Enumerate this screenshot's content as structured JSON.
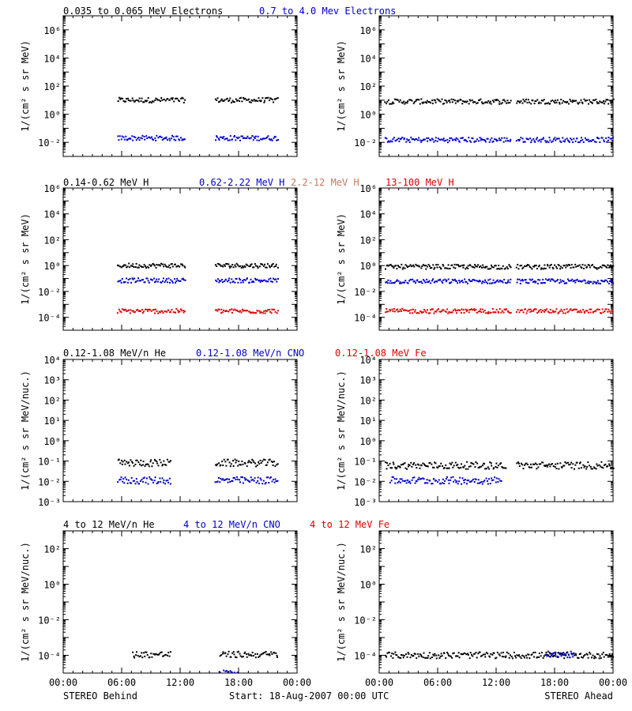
{
  "colors": {
    "black": "#000000",
    "blue": "#0000cc",
    "brown": "#c87860",
    "red": "#e00000"
  },
  "rows": [
    {
      "id": "electrons",
      "legend": [
        {
          "text": "0.035 to 0.065 MeV Electrons",
          "color": "#000000"
        },
        {
          "text": "0.7 to 4.0 Mev Electrons",
          "color": "#0000cc"
        }
      ],
      "ylabel": "1/(cm² s sr MeV)"
    },
    {
      "id": "protons",
      "legend": [
        {
          "text": "0.14-0.62 MeV H",
          "color": "#000000"
        },
        {
          "text": "0.62-2.22 MeV H",
          "color": "#0000cc"
        },
        {
          "text": "2.2-12 MeV H",
          "color": "#c87860"
        },
        {
          "text": "13-100 MeV H",
          "color": "#e00000"
        }
      ],
      "ylabel": "1/(cm² s sr MeV)"
    },
    {
      "id": "heavy_low",
      "legend": [
        {
          "text": "0.12-1.08 MeV/n He",
          "color": "#000000"
        },
        {
          "text": "0.12-1.08 MeV/n CNO",
          "color": "#0000cc"
        },
        {
          "text": "0.12-1.08 MeV Fe",
          "color": "#e00000"
        }
      ],
      "ylabel": "1/(cm² s sr MeV/nuc.)"
    },
    {
      "id": "heavy_high",
      "legend": [
        {
          "text": "4 to 12 MeV/n He",
          "color": "#000000"
        },
        {
          "text": "4 to 12 MeV/n CNO",
          "color": "#0000cc"
        },
        {
          "text": "4 to 12 MeV Fe",
          "color": "#e00000"
        }
      ],
      "ylabel": "1/(cm² s sr MeV/nuc.)"
    }
  ],
  "footer": {
    "left": "STEREO Behind",
    "center": "Start: 18-Aug-2007 00:00 UTC",
    "right": "STEREO Ahead"
  },
  "chart_data": [
    {
      "type": "scatter",
      "row": 0,
      "spacecraft": "Behind",
      "ylog": true,
      "xlim": [
        0,
        24
      ],
      "ylim_exp": [
        -3,
        7
      ],
      "yticks": [
        {
          "exp": -2,
          "label": "10⁻²"
        },
        {
          "exp": 0,
          "label": "10⁰"
        },
        {
          "exp": 2,
          "label": "10²"
        },
        {
          "exp": 4,
          "label": "10⁴"
        },
        {
          "exp": 6,
          "label": "10⁶"
        }
      ],
      "xticks": [
        "00:00",
        "06:00",
        "12:00",
        "18:00",
        "00:00"
      ],
      "series": [
        {
          "color": "#000000",
          "y": 10.0,
          "segments": [
            [
              5.5,
              12.5
            ],
            [
              15.5,
              22.0
            ]
          ]
        },
        {
          "color": "#0000cc",
          "y": 0.02,
          "segments": [
            [
              5.5,
              12.5
            ],
            [
              15.5,
              22.0
            ]
          ]
        }
      ]
    },
    {
      "type": "scatter",
      "row": 0,
      "spacecraft": "Ahead",
      "ylog": true,
      "xlim": [
        0,
        24
      ],
      "ylim_exp": [
        -3,
        7
      ],
      "yticks": [
        {
          "exp": -2,
          "label": "10⁻²"
        },
        {
          "exp": 0,
          "label": "10⁰"
        },
        {
          "exp": 2,
          "label": "10²"
        },
        {
          "exp": 4,
          "label": "10⁴"
        },
        {
          "exp": 6,
          "label": "10⁶"
        }
      ],
      "xticks": [
        "00:00",
        "06:00",
        "12:00",
        "18:00",
        "00:00"
      ],
      "series": [
        {
          "color": "#000000",
          "y": 8.0,
          "segments": [
            [
              0.5,
              13.5
            ],
            [
              14.0,
              24.0
            ]
          ]
        },
        {
          "color": "#0000cc",
          "y": 0.015,
          "segments": [
            [
              0.5,
              13.5
            ],
            [
              14.0,
              24.0
            ]
          ]
        }
      ]
    },
    {
      "type": "scatter",
      "row": 1,
      "spacecraft": "Behind",
      "ylog": true,
      "xlim": [
        0,
        24
      ],
      "ylim_exp": [
        -5,
        6
      ],
      "yticks": [
        {
          "exp": -4,
          "label": "10⁻⁴"
        },
        {
          "exp": -2,
          "label": "10⁻²"
        },
        {
          "exp": 0,
          "label": "10⁰"
        },
        {
          "exp": 2,
          "label": "10²"
        },
        {
          "exp": 4,
          "label": "10⁴"
        },
        {
          "exp": 6,
          "label": "10⁶"
        }
      ],
      "xticks": [
        "00:00",
        "06:00",
        "12:00",
        "18:00",
        "00:00"
      ],
      "series": [
        {
          "color": "#000000",
          "y": 1.0,
          "segments": [
            [
              5.5,
              12.5
            ],
            [
              15.5,
              22.0
            ]
          ]
        },
        {
          "color": "#0000cc",
          "y": 0.07,
          "segments": [
            [
              5.5,
              12.5
            ],
            [
              15.5,
              22.0
            ]
          ]
        },
        {
          "color": "#e00000",
          "y": 0.0003,
          "segments": [
            [
              5.5,
              12.5
            ],
            [
              15.5,
              22.0
            ]
          ]
        }
      ]
    },
    {
      "type": "scatter",
      "row": 1,
      "spacecraft": "Ahead",
      "ylog": true,
      "xlim": [
        0,
        24
      ],
      "ylim_exp": [
        -5,
        6
      ],
      "yticks": [
        {
          "exp": -4,
          "label": "10⁻⁴"
        },
        {
          "exp": -2,
          "label": "10⁻²"
        },
        {
          "exp": 0,
          "label": "10⁰"
        },
        {
          "exp": 2,
          "label": "10²"
        },
        {
          "exp": 4,
          "label": "10⁴"
        },
        {
          "exp": 6,
          "label": "10⁶"
        }
      ],
      "xticks": [
        "00:00",
        "06:00",
        "12:00",
        "18:00",
        "00:00"
      ],
      "series": [
        {
          "color": "#000000",
          "y": 0.8,
          "segments": [
            [
              0.5,
              13.5
            ],
            [
              14.0,
              24.0
            ]
          ]
        },
        {
          "color": "#0000cc",
          "y": 0.06,
          "segments": [
            [
              0.5,
              13.5
            ],
            [
              14.0,
              24.0
            ]
          ]
        },
        {
          "color": "#e00000",
          "y": 0.0003,
          "segments": [
            [
              0.5,
              13.5
            ],
            [
              14.0,
              24.0
            ]
          ]
        }
      ]
    },
    {
      "type": "scatter",
      "row": 2,
      "spacecraft": "Behind",
      "ylog": true,
      "xlim": [
        0,
        24
      ],
      "ylim_exp": [
        -3,
        4
      ],
      "yticks": [
        {
          "exp": -3,
          "label": "10⁻³"
        },
        {
          "exp": -2,
          "label": "10⁻²"
        },
        {
          "exp": -1,
          "label": "10⁻¹"
        },
        {
          "exp": 0,
          "label": "10⁰"
        },
        {
          "exp": 1,
          "label": "10¹"
        },
        {
          "exp": 2,
          "label": "10²"
        },
        {
          "exp": 3,
          "label": "10³"
        },
        {
          "exp": 4,
          "label": "10⁴"
        }
      ],
      "xticks": [
        "00:00",
        "06:00",
        "12:00",
        "18:00",
        "00:00"
      ],
      "series": [
        {
          "color": "#000000",
          "y": 0.08,
          "segments": [
            [
              5.5,
              11.0
            ],
            [
              15.5,
              22.0
            ]
          ]
        },
        {
          "color": "#0000cc",
          "y": 0.011,
          "segments": [
            [
              5.5,
              11.0
            ],
            [
              15.5,
              22.0
            ]
          ]
        }
      ]
    },
    {
      "type": "scatter",
      "row": 2,
      "spacecraft": "Ahead",
      "ylog": true,
      "xlim": [
        0,
        24
      ],
      "ylim_exp": [
        -3,
        4
      ],
      "yticks": [
        {
          "exp": -3,
          "label": "10⁻³"
        },
        {
          "exp": -2,
          "label": "10⁻²"
        },
        {
          "exp": -1,
          "label": "10⁻¹"
        },
        {
          "exp": 0,
          "label": "10⁰"
        },
        {
          "exp": 1,
          "label": "10¹"
        },
        {
          "exp": 2,
          "label": "10²"
        },
        {
          "exp": 3,
          "label": "10³"
        },
        {
          "exp": 4,
          "label": "10⁴"
        }
      ],
      "xticks": [
        "00:00",
        "06:00",
        "12:00",
        "18:00",
        "00:00"
      ],
      "series": [
        {
          "color": "#000000",
          "y": 0.06,
          "segments": [
            [
              0.5,
              13.0
            ],
            [
              14.0,
              24.0
            ]
          ]
        },
        {
          "color": "#0000cc",
          "y": 0.011,
          "segments": [
            [
              1.0,
              12.5
            ]
          ]
        }
      ]
    },
    {
      "type": "scatter",
      "row": 3,
      "spacecraft": "Behind",
      "ylog": true,
      "xlim": [
        0,
        24
      ],
      "ylim_exp": [
        -5,
        3
      ],
      "yticks": [
        {
          "exp": -4,
          "label": "10⁻⁴"
        },
        {
          "exp": -2,
          "label": "10⁻²"
        },
        {
          "exp": 0,
          "label": "10⁰"
        },
        {
          "exp": 2,
          "label": "10²"
        }
      ],
      "xticks": [
        "00:00",
        "06:00",
        "12:00",
        "18:00",
        "00:00"
      ],
      "series": [
        {
          "color": "#000000",
          "y": 0.00011,
          "segments": [
            [
              7.0,
              11.0
            ],
            [
              16.0,
              22.0
            ]
          ]
        },
        {
          "color": "#0000cc",
          "y": 1e-05,
          "segments": [
            [
              16.0,
              18.0
            ]
          ]
        }
      ]
    },
    {
      "type": "scatter",
      "row": 3,
      "spacecraft": "Ahead",
      "ylog": true,
      "xlim": [
        0,
        24
      ],
      "ylim_exp": [
        -5,
        3
      ],
      "yticks": [
        {
          "exp": -4,
          "label": "10⁻⁴"
        },
        {
          "exp": -2,
          "label": "10⁻²"
        },
        {
          "exp": 0,
          "label": "10⁰"
        },
        {
          "exp": 2,
          "label": "10²"
        }
      ],
      "xticks": [
        "00:00",
        "06:00",
        "12:00",
        "18:00",
        "00:00"
      ],
      "series": [
        {
          "color": "#000000",
          "y": 0.0001,
          "segments": [
            [
              0.5,
              24.0
            ]
          ]
        },
        {
          "color": "#0000cc",
          "y": 0.00011,
          "segments": [
            [
              17.0,
              20.0
            ]
          ]
        }
      ]
    }
  ]
}
